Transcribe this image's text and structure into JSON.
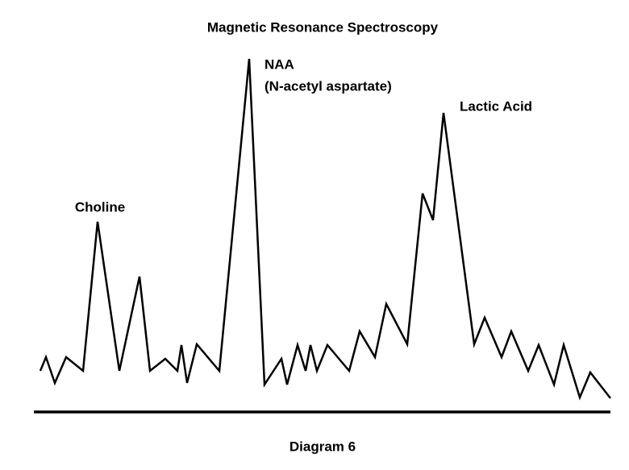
{
  "title": "Magnetic Resonance Spectroscopy",
  "peaks": [
    {
      "label": "Choline"
    },
    {
      "label": "NAA",
      "sublabel": "(N-acetyl aspartate)"
    },
    {
      "label": "Lactic Acid"
    }
  ],
  "caption": "Diagram 6"
}
